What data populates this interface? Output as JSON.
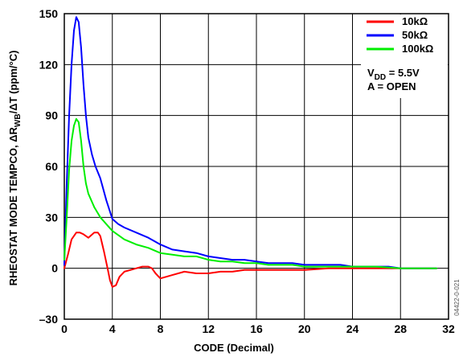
{
  "chart_data": {
    "type": "line",
    "title": "",
    "xlabel": "CODE (Decimal)",
    "ylabel": "RHEOSTAT MODE TEMPCO, ΔR",
    "ylabel_sub": "WB",
    "ylabel_tail": "/ΔT (ppm/°C)",
    "xlim": [
      0,
      32
    ],
    "ylim": [
      -30,
      150
    ],
    "x_ticks": [
      "0",
      "4",
      "8",
      "12",
      "16",
      "20",
      "24",
      "28",
      "32"
    ],
    "y_ticks": [
      "–30",
      "0",
      "30",
      "60",
      "90",
      "120",
      "150"
    ],
    "grid": true,
    "legend_position": "top-right",
    "series": [
      {
        "name": "10kΩ",
        "color": "#ff0000",
        "points": [
          [
            0,
            0
          ],
          [
            0.3,
            8
          ],
          [
            0.6,
            17
          ],
          [
            1,
            21
          ],
          [
            1.3,
            21
          ],
          [
            1.6,
            20
          ],
          [
            2,
            18
          ],
          [
            2.5,
            21
          ],
          [
            2.8,
            21
          ],
          [
            3.0,
            19
          ],
          [
            3.3,
            10
          ],
          [
            3.6,
            0
          ],
          [
            3.8,
            -7
          ],
          [
            4,
            -11
          ],
          [
            4.3,
            -10
          ],
          [
            4.6,
            -5
          ],
          [
            5,
            -2
          ],
          [
            5.5,
            -1
          ],
          [
            6,
            0
          ],
          [
            6.5,
            1
          ],
          [
            7,
            1
          ],
          [
            7.3,
            0
          ],
          [
            7.6,
            -3
          ],
          [
            8,
            -6
          ],
          [
            8.5,
            -5
          ],
          [
            9,
            -4
          ],
          [
            10,
            -2
          ],
          [
            11,
            -3
          ],
          [
            12,
            -3
          ],
          [
            13,
            -2
          ],
          [
            14,
            -2
          ],
          [
            15,
            -1
          ],
          [
            16,
            -1
          ],
          [
            17,
            -1
          ],
          [
            18,
            -1
          ],
          [
            20,
            -1
          ],
          [
            22,
            0
          ],
          [
            24,
            0
          ],
          [
            26,
            0
          ],
          [
            28,
            0
          ],
          [
            30,
            0
          ],
          [
            31,
            0
          ]
        ]
      },
      {
        "name": "50kΩ",
        "color": "#0000ff",
        "points": [
          [
            0,
            2
          ],
          [
            0.2,
            50
          ],
          [
            0.4,
            90
          ],
          [
            0.6,
            120
          ],
          [
            0.8,
            140
          ],
          [
            1,
            148
          ],
          [
            1.2,
            145
          ],
          [
            1.4,
            130
          ],
          [
            1.6,
            108
          ],
          [
            1.8,
            90
          ],
          [
            2,
            77
          ],
          [
            2.3,
            67
          ],
          [
            2.6,
            60
          ],
          [
            3,
            53
          ],
          [
            3.5,
            40
          ],
          [
            4,
            29
          ],
          [
            4.5,
            26
          ],
          [
            5,
            24
          ],
          [
            6,
            21
          ],
          [
            7,
            18
          ],
          [
            8,
            14
          ],
          [
            9,
            11
          ],
          [
            10,
            10
          ],
          [
            11,
            9
          ],
          [
            12,
            7
          ],
          [
            13,
            6
          ],
          [
            14,
            5
          ],
          [
            15,
            5
          ],
          [
            16,
            4
          ],
          [
            17,
            3
          ],
          [
            18,
            3
          ],
          [
            19,
            3
          ],
          [
            20,
            2
          ],
          [
            21,
            2
          ],
          [
            22,
            2
          ],
          [
            23,
            2
          ],
          [
            24,
            1
          ],
          [
            25,
            1
          ],
          [
            26,
            1
          ],
          [
            27,
            1
          ],
          [
            28,
            0
          ],
          [
            29,
            0
          ],
          [
            30,
            0
          ],
          [
            31,
            0
          ]
        ]
      },
      {
        "name": "100kΩ",
        "color": "#00ee00",
        "points": [
          [
            0,
            5
          ],
          [
            0.2,
            30
          ],
          [
            0.4,
            58
          ],
          [
            0.6,
            75
          ],
          [
            0.8,
            84
          ],
          [
            1,
            88
          ],
          [
            1.2,
            86
          ],
          [
            1.4,
            75
          ],
          [
            1.6,
            60
          ],
          [
            1.8,
            50
          ],
          [
            2,
            44
          ],
          [
            2.5,
            36
          ],
          [
            3,
            30
          ],
          [
            3.5,
            26
          ],
          [
            4,
            22
          ],
          [
            5,
            17
          ],
          [
            6,
            14
          ],
          [
            7,
            12
          ],
          [
            8,
            9
          ],
          [
            9,
            8
          ],
          [
            10,
            7
          ],
          [
            11,
            7
          ],
          [
            12,
            5
          ],
          [
            13,
            4
          ],
          [
            14,
            4
          ],
          [
            15,
            3
          ],
          [
            16,
            3
          ],
          [
            17,
            2
          ],
          [
            18,
            2
          ],
          [
            19,
            2
          ],
          [
            20,
            1
          ],
          [
            22,
            1
          ],
          [
            24,
            1
          ],
          [
            26,
            1
          ],
          [
            28,
            0
          ],
          [
            30,
            0
          ],
          [
            31,
            0
          ]
        ]
      }
    ],
    "annotations": {
      "vdd_main": "V",
      "vdd_sub": "DD",
      "vdd_tail": " = 5.5V",
      "open": "A = OPEN",
      "figure_id": "04422-0-021"
    }
  }
}
